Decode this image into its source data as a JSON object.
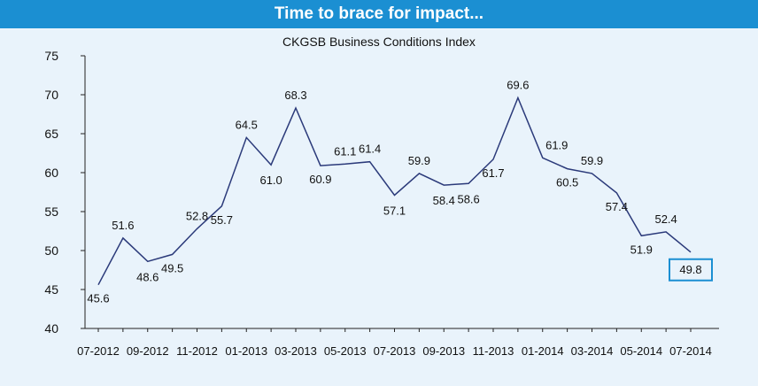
{
  "banner": {
    "title": "Time to brace for impact..."
  },
  "colors": {
    "banner_bg": "#1b8fd2",
    "background": "#e9f3fb",
    "line": "#2b3a7a",
    "highlight_box": "#1b8fd2"
  },
  "chart_data": {
    "type": "line",
    "title": "CKGSB Business Conditions Index",
    "xlabel": "",
    "ylabel": "",
    "ylim": [
      40,
      75
    ],
    "yticks": [
      40,
      45,
      50,
      55,
      60,
      65,
      70,
      75
    ],
    "grid": false,
    "x": [
      "07-2012",
      "08-2012",
      "09-2012",
      "10-2012",
      "11-2012",
      "12-2012",
      "01-2013",
      "02-2013",
      "03-2013",
      "04-2013",
      "05-2013",
      "06-2013",
      "07-2013",
      "08-2013",
      "09-2013",
      "10-2013",
      "11-2013",
      "12-2013",
      "01-2014",
      "02-2014",
      "03-2014",
      "04-2014",
      "05-2014",
      "06-2014",
      "07-2014"
    ],
    "xtick_labels": [
      "07-2012",
      "09-2012",
      "11-2012",
      "01-2013",
      "03-2013",
      "05-2013",
      "07-2013",
      "09-2013",
      "11-2013",
      "01-2014",
      "03-2014",
      "05-2014",
      "07-2014"
    ],
    "values": [
      45.6,
      51.6,
      48.6,
      49.5,
      52.8,
      55.7,
      64.5,
      61.0,
      68.3,
      60.9,
      61.1,
      61.4,
      57.1,
      59.9,
      58.4,
      58.6,
      61.7,
      69.6,
      61.9,
      60.5,
      59.9,
      57.4,
      51.9,
      52.4,
      49.8
    ],
    "data_labels": [
      "45.6",
      "51.6",
      "48.6",
      "49.5",
      "52.8",
      "55.7",
      "64.5",
      "61.0",
      "68.3",
      "60.9",
      "61.1",
      "61.4",
      "57.1",
      "59.9",
      "58.4",
      "58.6",
      "61.7",
      "69.6",
      "61.9",
      "60.5",
      "59.9",
      "57.4",
      "51.9",
      "52.4",
      "49.8"
    ],
    "highlighted_point": "07-2014"
  }
}
